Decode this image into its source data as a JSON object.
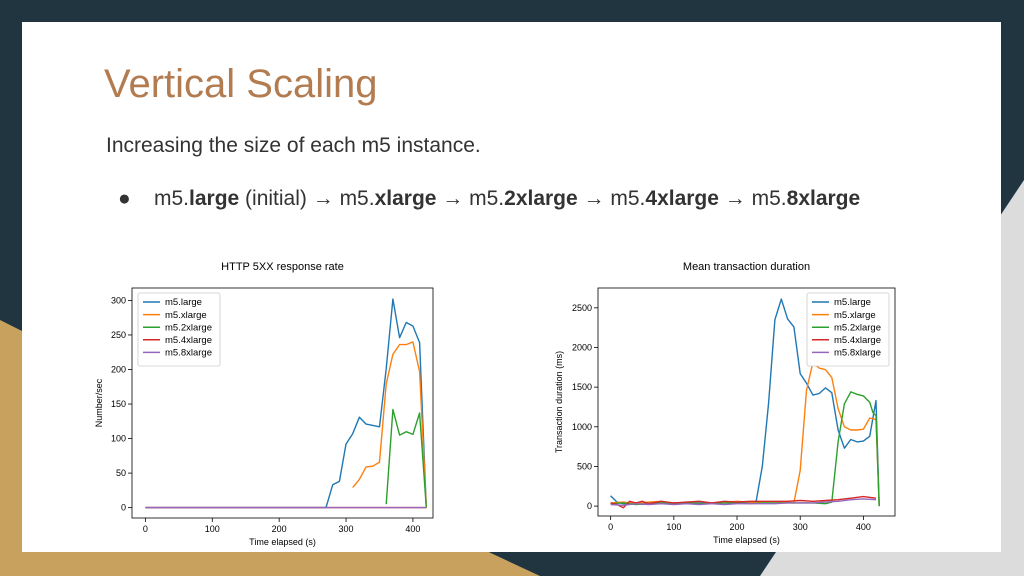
{
  "slide": {
    "title": "Vertical Scaling",
    "subtitle": "Increasing the size of each m5 instance.",
    "bullet": {
      "marker": "●",
      "parts": [
        {
          "text": "m5.",
          "bold": false
        },
        {
          "text": "large",
          "bold": true
        },
        {
          "text": " (initial) →  m5.",
          "bold": false
        },
        {
          "text": "xlarge",
          "bold": true
        },
        {
          "text": " →  m5.",
          "bold": false
        },
        {
          "text": "2xlarge",
          "bold": true
        },
        {
          "text": " → m5.",
          "bold": false
        },
        {
          "text": "4xlarge",
          "bold": true
        },
        {
          "text": " → m5.",
          "bold": false
        },
        {
          "text": "8xlarge",
          "bold": true
        }
      ]
    }
  },
  "chart_data": [
    {
      "type": "line",
      "title": "HTTP 5XX response rate",
      "xlabel": "Time elapsed (s)",
      "ylabel": "Number/sec",
      "xlim": [
        -20,
        430
      ],
      "ylim": [
        -15,
        318
      ],
      "xticks": [
        0,
        100,
        200,
        300,
        400
      ],
      "yticks": [
        0,
        50,
        100,
        150,
        200,
        250,
        300
      ],
      "legend_position": "top-left",
      "series": [
        {
          "name": "m5.large",
          "color": "#1f77b4",
          "x": [
            0,
            270,
            280,
            290,
            300,
            310,
            320,
            330,
            340,
            350,
            360,
            370,
            380,
            390,
            400,
            410,
            420
          ],
          "y": [
            0,
            0,
            33,
            38,
            92,
            107,
            131,
            121,
            119,
            117,
            201,
            302,
            246,
            268,
            263,
            239,
            0
          ]
        },
        {
          "name": "m5.xlarge",
          "color": "#ff7f0e",
          "x": [
            310,
            320,
            330,
            340,
            350,
            360,
            370,
            380,
            390,
            400,
            410,
            420
          ],
          "y": [
            29,
            41,
            59,
            60,
            66,
            179,
            222,
            236,
            236,
            240,
            197,
            0
          ]
        },
        {
          "name": "m5.2xlarge",
          "color": "#2ca02c",
          "x": [
            360,
            370,
            380,
            390,
            400,
            410,
            420
          ],
          "y": [
            5,
            142,
            105,
            110,
            106,
            137,
            0
          ]
        },
        {
          "name": "m5.4xlarge",
          "color": "#d62728",
          "x": [
            0,
            420
          ],
          "y": [
            0,
            0
          ]
        },
        {
          "name": "m5.8xlarge",
          "color": "#9467bd",
          "x": [
            0,
            420
          ],
          "y": [
            0,
            0
          ]
        }
      ]
    },
    {
      "type": "line",
      "title": "Mean transaction duration",
      "xlabel": "Time elapsed (s)",
      "ylabel": "Transaction duration (ms)",
      "xlim": [
        -20,
        450
      ],
      "ylim": [
        -125,
        2750
      ],
      "xticks": [
        0,
        100,
        200,
        300,
        400
      ],
      "yticks": [
        0,
        500,
        1000,
        1500,
        2000,
        2500
      ],
      "legend_position": "top-right",
      "series": [
        {
          "name": "m5.large",
          "color": "#1f77b4",
          "x": [
            0,
            10,
            20,
            30,
            40,
            50,
            60,
            80,
            100,
            120,
            140,
            160,
            180,
            200,
            220,
            230,
            240,
            250,
            260,
            270,
            280,
            290,
            300,
            310,
            320,
            330,
            340,
            350,
            360,
            370,
            380,
            390,
            400,
            410,
            420,
            425
          ],
          "y": [
            130,
            50,
            30,
            30,
            40,
            20,
            40,
            40,
            40,
            45,
            40,
            40,
            40,
            40,
            40,
            50,
            500,
            1300,
            2350,
            2610,
            2360,
            2260,
            1670,
            1550,
            1400,
            1420,
            1490,
            1430,
            960,
            730,
            840,
            810,
            820,
            880,
            1330,
            0
          ]
        },
        {
          "name": "m5.xlarge",
          "color": "#ff7f0e",
          "x": [
            0,
            20,
            40,
            60,
            80,
            100,
            120,
            140,
            160,
            180,
            200,
            220,
            240,
            260,
            280,
            290,
            300,
            310,
            320,
            330,
            340,
            350,
            360,
            370,
            380,
            390,
            400,
            410,
            420,
            425
          ],
          "y": [
            40,
            50,
            30,
            50,
            60,
            30,
            40,
            60,
            40,
            50,
            60,
            50,
            40,
            40,
            50,
            40,
            450,
            1460,
            1810,
            1740,
            1720,
            1620,
            1230,
            1000,
            960,
            960,
            970,
            1110,
            1090,
            0
          ]
        },
        {
          "name": "m5.2xlarge",
          "color": "#2ca02c",
          "x": [
            0,
            20,
            40,
            60,
            80,
            100,
            120,
            140,
            160,
            180,
            200,
            220,
            240,
            260,
            280,
            300,
            320,
            340,
            350,
            360,
            370,
            380,
            390,
            400,
            410,
            415,
            420,
            425
          ],
          "y": [
            30,
            40,
            20,
            30,
            40,
            30,
            40,
            30,
            30,
            40,
            40,
            30,
            40,
            40,
            40,
            40,
            40,
            30,
            50,
            810,
            1290,
            1440,
            1410,
            1390,
            1310,
            1180,
            1140,
            0
          ]
        },
        {
          "name": "m5.4xlarge",
          "color": "#d62728",
          "x": [
            0,
            10,
            20,
            30,
            40,
            50,
            60,
            80,
            100,
            120,
            140,
            160,
            180,
            200,
            220,
            240,
            260,
            280,
            300,
            320,
            340,
            360,
            380,
            400,
            420
          ],
          "y": [
            40,
            20,
            -20,
            60,
            40,
            60,
            30,
            60,
            40,
            50,
            60,
            40,
            60,
            50,
            60,
            60,
            60,
            60,
            70,
            60,
            70,
            80,
            100,
            120,
            100
          ]
        },
        {
          "name": "m5.8xlarge",
          "color": "#9467bd",
          "x": [
            0,
            20,
            40,
            60,
            80,
            100,
            120,
            140,
            160,
            180,
            200,
            220,
            240,
            260,
            280,
            300,
            320,
            340,
            360,
            380,
            400,
            420
          ],
          "y": [
            20,
            10,
            30,
            20,
            30,
            20,
            30,
            20,
            30,
            20,
            30,
            30,
            30,
            30,
            40,
            40,
            40,
            50,
            60,
            80,
            90,
            80
          ]
        }
      ]
    }
  ]
}
